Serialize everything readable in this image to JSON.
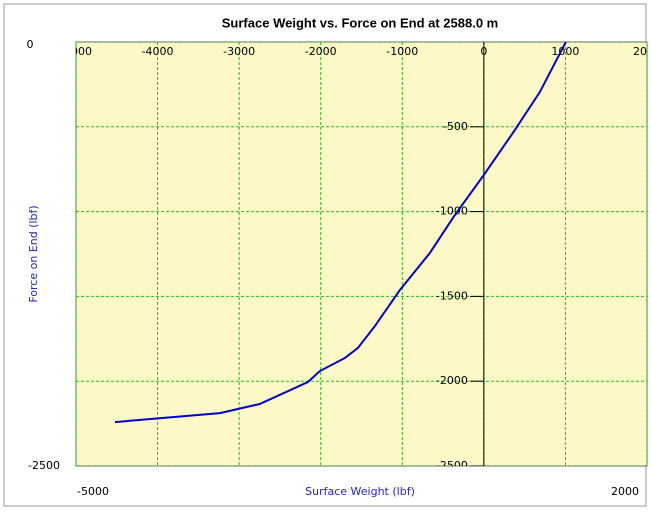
{
  "chart_data": {
    "type": "line",
    "title": "Surface Weight vs. Force on End at 2588.0 m",
    "x_label": "Surface Weight  (lbf)",
    "y_label": "Force on End (lbf)",
    "xlim": [
      -5000,
      2000
    ],
    "ylim": [
      -2500,
      0
    ],
    "xticks": [
      -5000,
      -4000,
      -3000,
      -2000,
      -1000,
      0,
      1000,
      2000
    ],
    "yticks": [
      0,
      -500,
      -1000,
      -1500,
      -2000,
      -2500
    ],
    "grid": true,
    "series": [
      {
        "name": "Force on End",
        "color": "#0000cc",
        "x": [
          -4522,
          -3235,
          -2745,
          -2157,
          -2010,
          -1703,
          -1544,
          -1336,
          -1029,
          -662,
          -355,
          0,
          380,
          686,
          1005
        ],
        "values": [
          -2241,
          -2188,
          -2134,
          -2005,
          -1940,
          -1863,
          -1804,
          -1675,
          -1462,
          -1244,
          -1020,
          -784,
          -519,
          -295,
          0
        ]
      }
    ]
  }
}
